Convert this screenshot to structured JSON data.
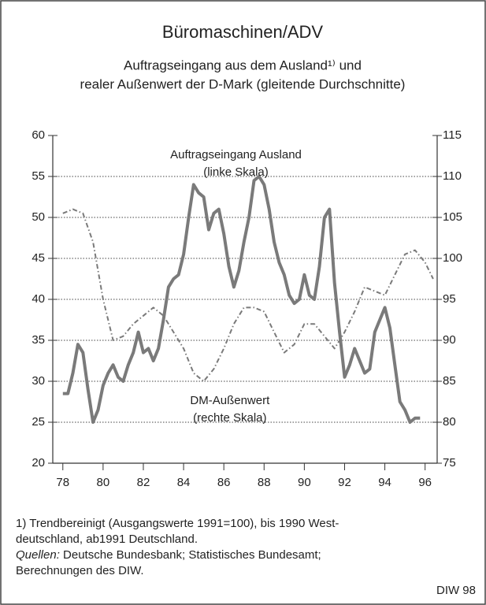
{
  "chart_data": {
    "type": "line",
    "title": "Büromaschinen/ADV",
    "subtitle": [
      "Auftragseingang aus dem Ausland¹⁾ und",
      "realer Außenwert der D-Mark (gleitende Durchschnitte)"
    ],
    "annotations": [
      {
        "text": [
          "Auftragseingang Ausland",
          "(linke Skala)"
        ],
        "x": 86.6,
        "y": 57.6
      },
      {
        "text": [
          "DM-Außenwert",
          "(rechte Skala)"
        ],
        "x": 86.3,
        "y": 27.6
      }
    ],
    "xlim": [
      77.5,
      96.6
    ],
    "xticks": [
      {
        "value": 78,
        "label": "78"
      },
      {
        "value": 80,
        "label": "80"
      },
      {
        "value": 82,
        "label": "82"
      },
      {
        "value": 84,
        "label": "84"
      },
      {
        "value": 86,
        "label": "86"
      },
      {
        "value": 88,
        "label": "88"
      },
      {
        "value": 90,
        "label": "90"
      },
      {
        "value": 92,
        "label": "92"
      },
      {
        "value": 94,
        "label": "94"
      },
      {
        "value": 96,
        "label": "96"
      }
    ],
    "ylim": [
      20,
      60
    ],
    "yticks": [
      20,
      25,
      30,
      35,
      40,
      45,
      50,
      55,
      60
    ],
    "y2lim": [
      75,
      115
    ],
    "y2ticks": [
      75,
      80,
      85,
      90,
      95,
      100,
      105,
      110,
      115
    ],
    "grid": true,
    "series": [
      {
        "name": "Auftragseingang Ausland",
        "color": "#7a7a7a",
        "style": "solid",
        "x": [
          78,
          78.25,
          78.5,
          78.75,
          79,
          79.25,
          79.5,
          79.75,
          80,
          80.25,
          80.5,
          80.75,
          81,
          81.25,
          81.5,
          81.75,
          82,
          82.25,
          82.5,
          82.75,
          83,
          83.25,
          83.5,
          83.75,
          84,
          84.25,
          84.5,
          84.75,
          85,
          85.25,
          85.5,
          85.75,
          86,
          86.25,
          86.5,
          86.75,
          87,
          87.25,
          87.5,
          87.75,
          88,
          88.25,
          88.5,
          88.75,
          89,
          89.25,
          89.5,
          89.75,
          90,
          90.25,
          90.5,
          90.75,
          91,
          91.25,
          91.5,
          91.75,
          92,
          92.25,
          92.5,
          92.75,
          93,
          93.25,
          93.5,
          93.75,
          94,
          94.25,
          94.5,
          94.75,
          95,
          95.25,
          95.5,
          95.75
        ],
        "values": [
          28.5,
          28.5,
          31,
          34.5,
          33.5,
          29,
          25,
          26.5,
          29.5,
          31,
          32,
          30.5,
          30,
          32,
          33.5,
          36,
          33.5,
          34,
          32.5,
          34,
          37.5,
          41.5,
          42.5,
          43,
          45.5,
          50,
          54,
          53,
          52.5,
          48.5,
          50.5,
          51,
          48,
          44,
          41.5,
          43.5,
          47,
          50,
          54.5,
          55,
          54,
          51,
          47,
          44.5,
          43,
          40.5,
          39.5,
          40,
          43,
          40.5,
          40,
          44,
          50,
          51,
          42,
          36,
          30.5,
          32,
          34,
          32.5,
          31,
          31.5,
          36,
          37.5,
          39,
          36.5,
          32,
          27.5,
          26.5,
          25,
          25.5,
          25.5
        ]
      },
      {
        "name": "DM-Außenwert",
        "color": "#7a7a7a",
        "style": "dashdot",
        "axis": "y2",
        "x": [
          78,
          78.5,
          79,
          79.5,
          80,
          80.5,
          81,
          81.5,
          82,
          82.5,
          83,
          83.5,
          84,
          84.5,
          85,
          85.5,
          86,
          86.5,
          87,
          87.5,
          88,
          88.5,
          89,
          89.5,
          90,
          90.5,
          91,
          91.5,
          92,
          92.5,
          93,
          93.5,
          94,
          94.5,
          95,
          95.5,
          96,
          96.4
        ],
        "values": [
          105.5,
          106,
          105.5,
          102,
          95,
          90,
          90.5,
          92,
          93,
          94,
          93,
          91,
          89,
          86,
          85,
          86.5,
          89,
          92,
          94,
          94,
          93.5,
          91,
          88.5,
          89.5,
          92,
          92,
          90.5,
          89,
          91,
          93.5,
          96.5,
          96,
          95.5,
          98,
          100.5,
          101,
          99.5,
          97.5
        ]
      }
    ],
    "footnotes": [
      "1) Trendbereinigt  (Ausgangswerte 1991=100), bis 1990 West-",
      "deutschland, ab1991 Deutschland."
    ],
    "sources_label": "Quellen:",
    "sources": " Deutsche Bundesbank; Statistisches Bundesamt;",
    "sources_cont": "Berechnungen des DIW.",
    "credit": "DIW 98"
  }
}
